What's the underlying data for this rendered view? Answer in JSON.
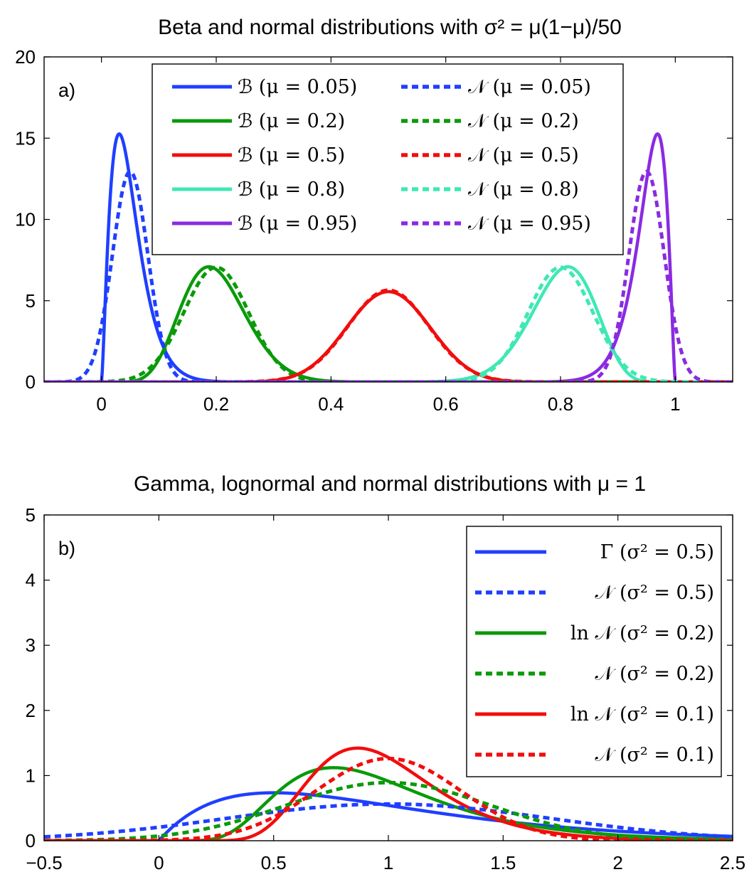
{
  "chart_data": [
    {
      "type": "line",
      "title": "Beta and normal distributions with σ² = μ(1−μ)/50",
      "panel_label": "a)",
      "xlabel": "",
      "ylabel": "",
      "xlim": [
        -0.1,
        1.1
      ],
      "ylim": [
        0,
        20
      ],
      "xticks": [
        0,
        0.2,
        0.4,
        0.6,
        0.8,
        1
      ],
      "xtick_labels": [
        "0",
        "0.2",
        "0.4",
        "0.6",
        "0.8",
        "1"
      ],
      "yticks": [
        0,
        5,
        10,
        15,
        20
      ],
      "ytick_labels": [
        "0",
        "5",
        "10",
        "15",
        "20"
      ],
      "variance_rule": "σ² = μ(1−μ)/50",
      "legend_position": "top-center",
      "legend_columns": 2,
      "series": [
        {
          "name": "ℬ (μ = 0.05)",
          "dist": "beta",
          "mu": 0.05,
          "color": "#1f3fff",
          "style": "solid"
        },
        {
          "name": "ℬ (μ = 0.2)",
          "dist": "beta",
          "mu": 0.2,
          "color": "#0a9a0a",
          "style": "solid"
        },
        {
          "name": "ℬ (μ = 0.5)",
          "dist": "beta",
          "mu": 0.5,
          "color": "#f20d0d",
          "style": "solid"
        },
        {
          "name": "ℬ (μ = 0.8)",
          "dist": "beta",
          "mu": 0.8,
          "color": "#3ee8b4",
          "style": "solid"
        },
        {
          "name": "ℬ (μ = 0.95)",
          "dist": "beta",
          "mu": 0.95,
          "color": "#8a2be2",
          "style": "solid"
        },
        {
          "name": "𝒩 (μ = 0.05)",
          "dist": "normal",
          "mu": 0.05,
          "color": "#1f3fff",
          "style": "dotted"
        },
        {
          "name": "𝒩 (μ = 0.2)",
          "dist": "normal",
          "mu": 0.2,
          "color": "#0a9a0a",
          "style": "dotted"
        },
        {
          "name": "𝒩 (μ = 0.5)",
          "dist": "normal",
          "mu": 0.5,
          "color": "#f20d0d",
          "style": "dotted"
        },
        {
          "name": "𝒩 (μ = 0.8)",
          "dist": "normal",
          "mu": 0.8,
          "color": "#3ee8b4",
          "style": "dotted"
        },
        {
          "name": "𝒩 (μ = 0.95)",
          "dist": "normal",
          "mu": 0.95,
          "color": "#8a2be2",
          "style": "dotted"
        }
      ]
    },
    {
      "type": "line",
      "title": "Gamma, lognormal and normal distributions with μ = 1",
      "panel_label": "b)",
      "xlabel": "",
      "ylabel": "",
      "xlim": [
        -0.5,
        2.5
      ],
      "ylim": [
        0,
        5
      ],
      "xticks": [
        -0.5,
        0,
        0.5,
        1,
        1.5,
        2,
        2.5
      ],
      "xtick_labels": [
        "−0.5",
        "0",
        "0.5",
        "1",
        "1.5",
        "2",
        "2.5"
      ],
      "yticks": [
        0,
        1,
        2,
        3,
        4,
        5
      ],
      "ytick_labels": [
        "0",
        "1",
        "2",
        "3",
        "4",
        "5"
      ],
      "legend_position": "top-right",
      "legend_columns": 1,
      "series": [
        {
          "name": "Γ (σ² = 0.5)",
          "dist": "gamma",
          "mu": 1,
          "var": 0.5,
          "color": "#1f3fff",
          "style": "solid"
        },
        {
          "name": "𝒩 (σ² = 0.5)",
          "dist": "normal",
          "mu": 1,
          "var": 0.5,
          "color": "#1f3fff",
          "style": "dotted"
        },
        {
          "name": "ln 𝒩 (σ² = 0.2)",
          "dist": "lognormal",
          "mu": 1,
          "var": 0.2,
          "color": "#0a9a0a",
          "style": "solid"
        },
        {
          "name": "𝒩 (σ² = 0.2)",
          "dist": "normal",
          "mu": 1,
          "var": 0.2,
          "color": "#0a9a0a",
          "style": "dotted"
        },
        {
          "name": "ln 𝒩 (σ² = 0.1)",
          "dist": "lognormal",
          "mu": 1,
          "var": 0.1,
          "color": "#f20d0d",
          "style": "solid"
        },
        {
          "name": "𝒩 (σ² = 0.1)",
          "dist": "normal",
          "mu": 1,
          "var": 0.1,
          "color": "#f20d0d",
          "style": "dotted"
        }
      ]
    }
  ]
}
